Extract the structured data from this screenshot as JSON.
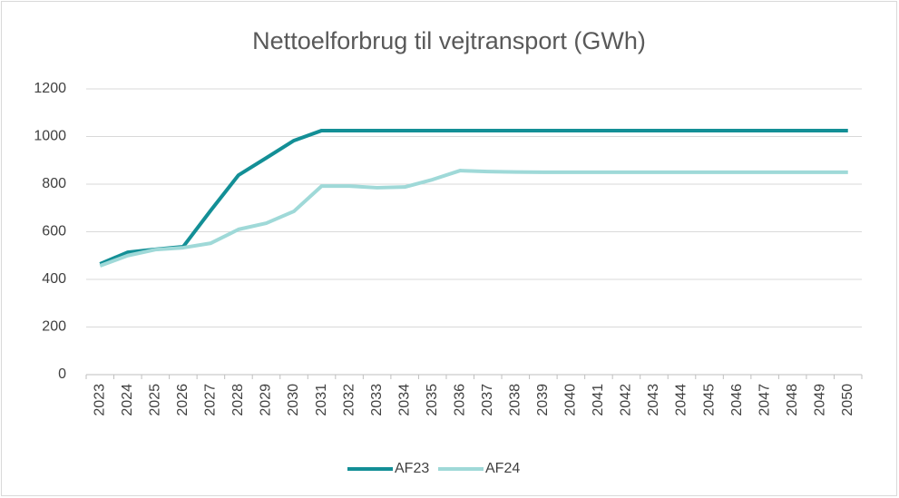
{
  "chart_data": {
    "type": "line",
    "title": "Nettoelforbrug til vejtransport (GWh)",
    "categories": [
      "2023",
      "2024",
      "2025",
      "2026",
      "2027",
      "2028",
      "2029",
      "2030",
      "2031",
      "2032",
      "2033",
      "2034",
      "2035",
      "2036",
      "2037",
      "2038",
      "2039",
      "2040",
      "2041",
      "2042",
      "2043",
      "2044",
      "2045",
      "2046",
      "2047",
      "2048",
      "2049",
      "2050"
    ],
    "series": [
      {
        "name": "AF23",
        "color": "#138f96",
        "values": [
          465,
          514,
          526,
          537,
          690,
          838,
          910,
          983,
          1025,
          1025,
          1025,
          1025,
          1025,
          1025,
          1025,
          1025,
          1025,
          1025,
          1025,
          1025,
          1025,
          1025,
          1025,
          1025,
          1025,
          1025,
          1025,
          1025
        ]
      },
      {
        "name": "AF24",
        "color": "#9fd9d8",
        "values": [
          457,
          500,
          525,
          533,
          552,
          610,
          636,
          686,
          792,
          792,
          785,
          788,
          819,
          857,
          853,
          851,
          850,
          850,
          850,
          850,
          850,
          850,
          850,
          850,
          850,
          850,
          850,
          850
        ]
      }
    ],
    "ylim": [
      0,
      1200
    ],
    "yticks": [
      0,
      200,
      400,
      600,
      800,
      1000,
      1200
    ],
    "grid": true,
    "legend": "bottom"
  }
}
